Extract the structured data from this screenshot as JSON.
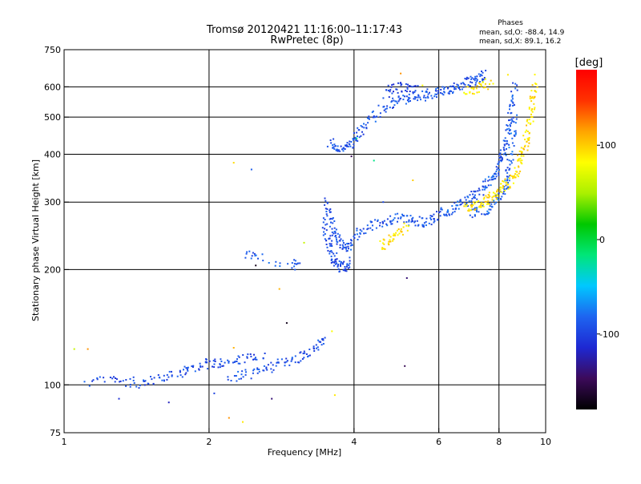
{
  "chart_data": {
    "type": "scatter",
    "title": "Tromsø 20120421 11:16:00–11:17:43",
    "subtitle": "RwPretec (8p)",
    "xlabel": "Frequency [MHz]",
    "ylabel": "Stationary phase Virtual Height [km]",
    "x_scale": "log",
    "y_scale": "log",
    "xlim": [
      1,
      10
    ],
    "ylim": [
      75,
      750
    ],
    "x_ticks": [
      1,
      2,
      4,
      6,
      8,
      10
    ],
    "y_ticks": [
      75,
      100,
      200,
      300,
      400,
      500,
      600,
      750
    ],
    "grid": true,
    "stats": {
      "heading": "Phases",
      "line_o": "mean, sd,O: -88.4, 14.9",
      "line_x": "mean, sd,X:  89.1, 16.2"
    },
    "colorbar": {
      "label": "[deg]",
      "range": [
        -180,
        180
      ],
      "ticks": [
        -100,
        0,
        100
      ],
      "colors": [
        "#000000",
        "#3c0a5a",
        "#1e28d2",
        "#1e64f0",
        "#00c8ff",
        "#00e678",
        "#00c800",
        "#aaf000",
        "#ffff00",
        "#ffa500",
        "#ff3200",
        "#ff0000"
      ]
    },
    "series": [
      {
        "phase": -95,
        "points": [
          [
            1.1,
            101
          ],
          [
            1.25,
            103
          ],
          [
            1.35,
            102
          ],
          [
            1.45,
            101
          ],
          [
            1.55,
            103
          ],
          [
            1.65,
            105
          ],
          [
            1.75,
            108
          ],
          [
            1.85,
            111
          ],
          [
            1.95,
            113
          ],
          [
            2.05,
            114
          ],
          [
            2.15,
            115
          ],
          [
            2.3,
            116
          ],
          [
            2.45,
            117
          ],
          [
            2.6,
            118
          ]
        ]
      },
      {
        "phase": -92,
        "points": [
          [
            2.2,
            104
          ],
          [
            2.35,
            106
          ],
          [
            2.5,
            108
          ],
          [
            2.65,
            110
          ],
          [
            2.8,
            113
          ],
          [
            2.95,
            116
          ],
          [
            3.1,
            119
          ],
          [
            3.25,
            122
          ],
          [
            3.4,
            128
          ],
          [
            3.45,
            133
          ]
        ]
      },
      {
        "phase": -90,
        "points": [
          [
            2.4,
            218
          ],
          [
            2.5,
            215
          ],
          [
            3.0,
            205
          ],
          [
            3.05,
            207
          ]
        ]
      },
      {
        "phase": -95,
        "points": [
          [
            3.45,
            270
          ],
          [
            3.5,
            250
          ],
          [
            3.55,
            232
          ],
          [
            3.6,
            220
          ],
          [
            3.65,
            212
          ],
          [
            3.7,
            207
          ],
          [
            3.78,
            203
          ],
          [
            3.85,
            205
          ],
          [
            3.9,
            210
          ]
        ]
      },
      {
        "phase": -92,
        "points": [
          [
            3.5,
            305
          ],
          [
            3.55,
            280
          ],
          [
            3.6,
            262
          ],
          [
            3.65,
            248
          ],
          [
            3.72,
            238
          ],
          [
            3.8,
            232
          ],
          [
            3.88,
            228
          ],
          [
            3.95,
            230
          ]
        ]
      },
      {
        "phase": -90,
        "points": [
          [
            3.95,
            240
          ],
          [
            4.1,
            250
          ],
          [
            4.3,
            258
          ],
          [
            4.5,
            264
          ],
          [
            4.7,
            270
          ],
          [
            4.9,
            272
          ],
          [
            5.1,
            271
          ],
          [
            5.3,
            268
          ],
          [
            5.5,
            266
          ],
          [
            5.7,
            270
          ],
          [
            5.9,
            275
          ],
          [
            6.1,
            280
          ],
          [
            6.3,
            286
          ],
          [
            6.5,
            292
          ],
          [
            6.7,
            298
          ],
          [
            6.9,
            304
          ],
          [
            7.1,
            312
          ],
          [
            7.3,
            320
          ],
          [
            7.5,
            330
          ],
          [
            7.7,
            342
          ],
          [
            7.85,
            355
          ],
          [
            8.0,
            372
          ],
          [
            8.1,
            390
          ],
          [
            8.2,
            412
          ],
          [
            8.3,
            440
          ],
          [
            8.4,
            475
          ],
          [
            8.45,
            510
          ],
          [
            8.55,
            560
          ],
          [
            8.65,
            610
          ]
        ]
      },
      {
        "phase": -85,
        "points": [
          [
            8.6,
            500
          ],
          [
            8.55,
            450
          ],
          [
            8.48,
            400
          ],
          [
            8.4,
            362
          ],
          [
            8.3,
            340
          ],
          [
            8.15,
            320
          ],
          [
            8.0,
            306
          ],
          [
            7.8,
            296
          ],
          [
            7.5,
            288
          ],
          [
            7.2,
            282
          ],
          [
            7.0,
            280
          ]
        ]
      },
      {
        "phase": -92,
        "points": [
          [
            3.55,
            430
          ],
          [
            3.65,
            420
          ],
          [
            3.75,
            415
          ],
          [
            3.85,
            418
          ],
          [
            3.95,
            425
          ],
          [
            4.05,
            445
          ],
          [
            4.15,
            465
          ],
          [
            4.3,
            490
          ],
          [
            4.5,
            515
          ],
          [
            4.7,
            535
          ],
          [
            4.9,
            550
          ],
          [
            5.1,
            555
          ],
          [
            5.3,
            560
          ],
          [
            5.5,
            565
          ],
          [
            5.7,
            575
          ],
          [
            5.9,
            580
          ],
          [
            6.1,
            585
          ],
          [
            6.3,
            592
          ],
          [
            6.5,
            600
          ],
          [
            6.7,
            608
          ],
          [
            6.9,
            615
          ],
          [
            7.1,
            625
          ],
          [
            7.3,
            635
          ],
          [
            7.45,
            645
          ]
        ]
      },
      {
        "phase": -100,
        "points": [
          [
            4.6,
            575
          ],
          [
            4.8,
            590
          ],
          [
            5.0,
            600
          ],
          [
            5.2,
            595
          ],
          [
            5.4,
            590
          ]
        ]
      },
      {
        "phase": 95,
        "points": [
          [
            4.55,
            230
          ],
          [
            4.7,
            238
          ],
          [
            4.85,
            245
          ],
          [
            5.0,
            252
          ],
          [
            5.15,
            258
          ]
        ]
      },
      {
        "phase": 92,
        "points": [
          [
            6.8,
            290
          ],
          [
            7.0,
            293
          ],
          [
            7.2,
            296
          ],
          [
            7.4,
            300
          ],
          [
            7.6,
            305
          ],
          [
            7.8,
            310
          ],
          [
            8.0,
            318
          ],
          [
            8.2,
            328
          ],
          [
            8.4,
            340
          ],
          [
            8.6,
            355
          ],
          [
            8.75,
            370
          ],
          [
            8.9,
            390
          ],
          [
            9.0,
            410
          ],
          [
            9.1,
            430
          ],
          [
            9.2,
            460
          ],
          [
            9.3,
            500
          ],
          [
            9.38,
            540
          ],
          [
            9.45,
            580
          ],
          [
            9.5,
            630
          ]
        ]
      },
      {
        "phase": 88,
        "points": [
          [
            6.8,
            580
          ],
          [
            7.1,
            590
          ],
          [
            7.4,
            605
          ],
          [
            7.7,
            618
          ]
        ]
      }
    ],
    "scatter_points": [
      [
        1.05,
        124,
        60
      ],
      [
        1.12,
        124,
        120
      ],
      [
        2.25,
        380,
        95
      ],
      [
        2.45,
        365,
        -85
      ],
      [
        2.5,
        205,
        -170
      ],
      [
        2.8,
        178,
        110
      ],
      [
        2.9,
        145,
        -170
      ],
      [
        3.15,
        235,
        60
      ],
      [
        4.05,
        440,
        -20
      ],
      [
        4.4,
        385,
        -20
      ],
      [
        5.3,
        342,
        100
      ],
      [
        5.15,
        190,
        -140
      ],
      [
        5.1,
        112,
        -150
      ],
      [
        3.6,
        138,
        80
      ],
      [
        3.65,
        94,
        90
      ],
      [
        2.2,
        82,
        120
      ],
      [
        2.35,
        80,
        90
      ],
      [
        2.25,
        125,
        110
      ],
      [
        2.05,
        95,
        -100
      ],
      [
        1.65,
        90,
        -120
      ],
      [
        2.7,
        92,
        -140
      ],
      [
        5.55,
        605,
        80
      ],
      [
        8.35,
        645,
        90
      ],
      [
        5.0,
        650,
        120
      ],
      [
        1.3,
        92,
        -110
      ],
      [
        3.95,
        395,
        -150
      ],
      [
        4.6,
        300,
        -95
      ]
    ]
  }
}
